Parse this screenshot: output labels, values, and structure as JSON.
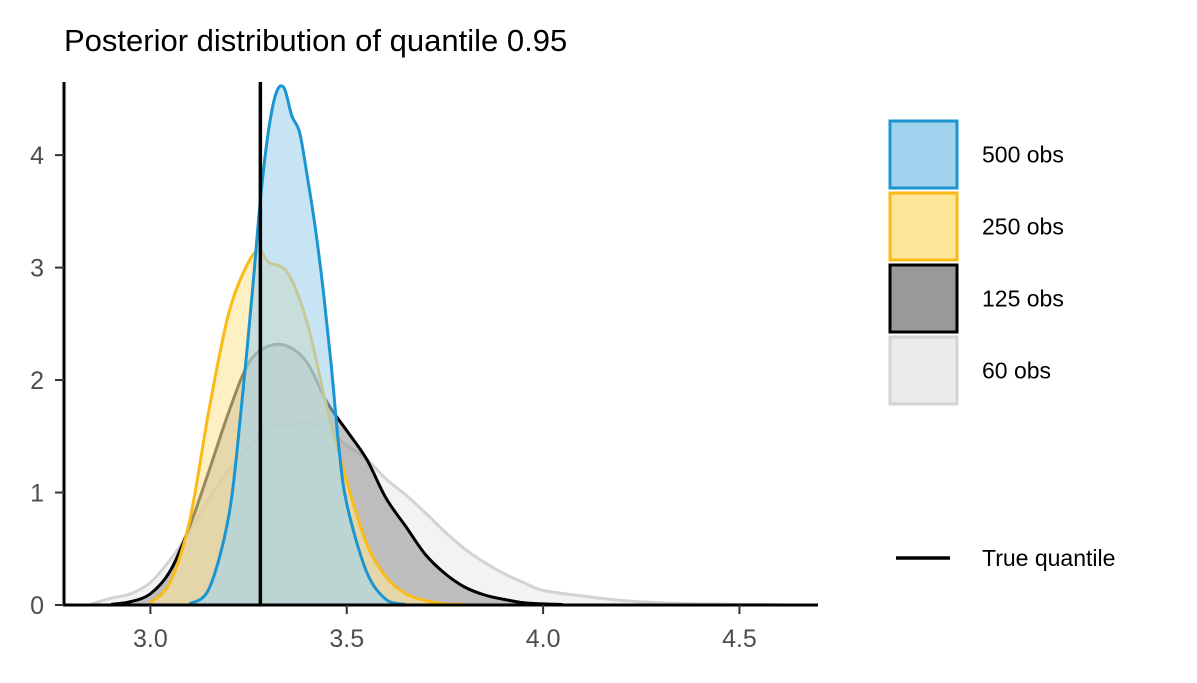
{
  "chart_data": {
    "type": "area",
    "title": "Posterior distribution of quantile 0.95",
    "xlabel": "",
    "ylabel": "",
    "xlim": [
      2.78,
      4.7
    ],
    "ylim": [
      0,
      4.65
    ],
    "x_ticks": [
      3.0,
      3.5,
      4.0,
      4.5
    ],
    "x_tick_labels": [
      "3.0",
      "3.5",
      "4.0",
      "4.5"
    ],
    "y_ticks": [
      0,
      1,
      2,
      3,
      4
    ],
    "y_tick_labels": [
      "0",
      "1",
      "2",
      "3",
      "4"
    ],
    "grid": false,
    "legend_position": "right",
    "reference_line": {
      "name": "True quantile",
      "x": 3.28,
      "color": "#000000"
    },
    "series": [
      {
        "name": "60 obs",
        "fill": "#ebebeb",
        "stroke": "#d3d3d3",
        "x": [
          2.85,
          2.9,
          2.95,
          3.0,
          3.05,
          3.1,
          3.15,
          3.2,
          3.25,
          3.3,
          3.35,
          3.4,
          3.45,
          3.5,
          3.55,
          3.6,
          3.65,
          3.7,
          3.75,
          3.8,
          3.85,
          3.9,
          3.95,
          4.0,
          4.1,
          4.2,
          4.3,
          4.4,
          4.5,
          4.6
        ],
        "values": [
          0.01,
          0.06,
          0.1,
          0.2,
          0.4,
          0.65,
          0.95,
          1.2,
          1.4,
          1.58,
          1.6,
          1.62,
          1.55,
          1.42,
          1.3,
          1.12,
          0.98,
          0.82,
          0.65,
          0.5,
          0.38,
          0.28,
          0.2,
          0.13,
          0.08,
          0.04,
          0.02,
          0.01,
          0.005,
          0.002
        ]
      },
      {
        "name": "125 obs",
        "fill": "#999999",
        "stroke": "#000000",
        "x": [
          2.9,
          2.95,
          3.0,
          3.05,
          3.1,
          3.15,
          3.2,
          3.25,
          3.3,
          3.35,
          3.4,
          3.45,
          3.5,
          3.55,
          3.6,
          3.65,
          3.7,
          3.75,
          3.8,
          3.85,
          3.9,
          3.95,
          4.0,
          4.05
        ],
        "values": [
          0.005,
          0.03,
          0.1,
          0.3,
          0.7,
          1.2,
          1.72,
          2.15,
          2.3,
          2.3,
          2.15,
          1.8,
          1.55,
          1.3,
          0.95,
          0.7,
          0.45,
          0.28,
          0.16,
          0.09,
          0.05,
          0.02,
          0.01,
          0.005
        ]
      },
      {
        "name": "250 obs",
        "fill": "#fee699",
        "stroke": "#fbbb17",
        "x": [
          3.0,
          3.05,
          3.1,
          3.15,
          3.2,
          3.25,
          3.28,
          3.3,
          3.35,
          3.4,
          3.45,
          3.5,
          3.55,
          3.6,
          3.65,
          3.7,
          3.75,
          3.8
        ],
        "values": [
          0.02,
          0.2,
          0.75,
          1.75,
          2.6,
          3.05,
          3.15,
          3.05,
          2.95,
          2.5,
          1.75,
          1.1,
          0.55,
          0.25,
          0.1,
          0.04,
          0.01,
          0.005
        ]
      },
      {
        "name": "500 obs",
        "fill": "#a1d2ee",
        "stroke": "#1a95d0",
        "x": [
          3.1,
          3.15,
          3.2,
          3.23,
          3.26,
          3.28,
          3.3,
          3.32,
          3.34,
          3.36,
          3.38,
          3.4,
          3.42,
          3.44,
          3.46,
          3.48,
          3.5,
          3.55,
          3.6,
          3.65
        ],
        "values": [
          0.01,
          0.15,
          0.8,
          1.7,
          2.8,
          3.6,
          4.2,
          4.55,
          4.6,
          4.35,
          4.2,
          3.8,
          3.35,
          2.8,
          2.15,
          1.4,
          0.9,
          0.3,
          0.05,
          0.005
        ]
      }
    ],
    "legend": [
      {
        "name": "500 obs",
        "fill": "#a1d2ee",
        "stroke": "#1a95d0"
      },
      {
        "name": "250 obs",
        "fill": "#fee699",
        "stroke": "#fbbb17"
      },
      {
        "name": "125 obs",
        "fill": "#999999",
        "stroke": "#000000"
      },
      {
        "name": "60 obs",
        "fill": "#ebebeb",
        "stroke": "#d3d3d3"
      }
    ]
  }
}
